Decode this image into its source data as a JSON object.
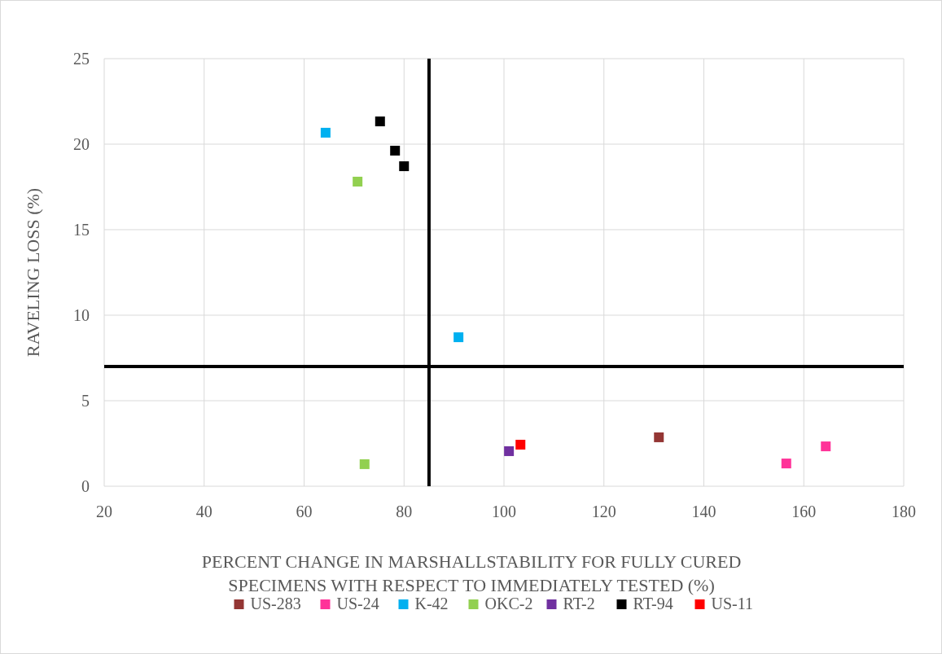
{
  "chart_data": {
    "type": "scatter",
    "xlabel": "PERCENT CHANGE IN MARSHALLSTABILITY FOR FULLY CURED SPECIMENS WITH RESPECT TO IMMEDIATELY TESTED (%)",
    "ylabel": "RAVELING LOSS (%)",
    "xlim": [
      20,
      180
    ],
    "xticks": [
      20,
      40,
      60,
      80,
      100,
      120,
      140,
      160,
      180
    ],
    "ylim": [
      0,
      25
    ],
    "yticks": [
      0,
      5,
      10,
      15,
      20,
      25
    ],
    "grid": true,
    "legend": "bottom",
    "marker": "square",
    "series": [
      {
        "name": "US-283",
        "color": "#943634",
        "x": [
          131.0
        ],
        "values": [
          2.86
        ]
      },
      {
        "name": "US-24",
        "color": "#ff3399",
        "x": [
          156.5,
          164.4
        ],
        "values": [
          1.33,
          2.33
        ]
      },
      {
        "name": "K-42",
        "color": "#00b0f0",
        "x": [
          64.3,
          90.9
        ],
        "values": [
          20.67,
          8.71
        ]
      },
      {
        "name": "OKC-2",
        "color": "#92d050",
        "x": [
          70.7,
          72.1
        ],
        "values": [
          17.81,
          1.29
        ]
      },
      {
        "name": "RT-2",
        "color": "#7030a0",
        "x": [
          101.0
        ],
        "values": [
          2.05
        ]
      },
      {
        "name": "RT-94",
        "color": "#000000",
        "x": [
          75.2,
          78.2,
          80.0
        ],
        "values": [
          21.33,
          19.62,
          18.71
        ]
      },
      {
        "name": "US-11",
        "color": "#ff0000",
        "x": [
          103.3
        ],
        "values": [
          2.43
        ]
      }
    ],
    "ref_lines": [
      {
        "axis": "x",
        "value": 85,
        "color": "#000000"
      },
      {
        "axis": "y",
        "value": 7,
        "color": "#000000"
      }
    ]
  }
}
